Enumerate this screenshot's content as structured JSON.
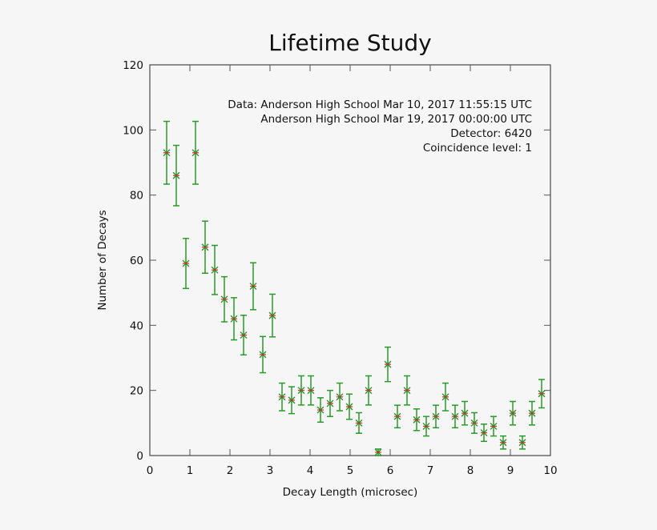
{
  "chart_data": {
    "type": "scatter",
    "title": "Lifetime Study",
    "xlabel": "Decay Length (microsec)",
    "ylabel": "Number of Decays",
    "xlim": [
      0,
      10
    ],
    "ylim": [
      0,
      120
    ],
    "xticks": [
      0,
      1,
      2,
      3,
      4,
      5,
      6,
      7,
      8,
      9,
      10
    ],
    "yticks": [
      0,
      20,
      40,
      60,
      80,
      100,
      120
    ],
    "grid": false,
    "error_bars": "sqrt(N)",
    "colors": {
      "marker": "#2a8a2a",
      "errorbar": "#2a9a2a",
      "marker_center": "#d03020"
    },
    "annotations": [
      "Data: Anderson High School Mar 10, 2017 11:55:15 UTC",
      "Anderson High School Mar 19, 2017 00:00:00 UTC",
      "Detector: 6420",
      "Coincidence level: 1"
    ],
    "x": [
      0.42,
      0.66,
      0.9,
      1.14,
      1.38,
      1.62,
      1.86,
      2.1,
      2.34,
      2.58,
      2.82,
      3.06,
      3.3,
      3.54,
      3.78,
      4.02,
      4.26,
      4.5,
      4.74,
      4.98,
      5.22,
      5.46,
      5.7,
      5.94,
      6.18,
      6.42,
      6.66,
      6.9,
      7.14,
      7.38,
      7.62,
      7.86,
      8.1,
      8.34,
      8.58,
      8.82,
      9.06,
      9.3,
      9.54,
      9.78
    ],
    "y": [
      93,
      86,
      59,
      93,
      64,
      57,
      48,
      42,
      37,
      52,
      31,
      43,
      18,
      17,
      20,
      20,
      14,
      16,
      18,
      15,
      10,
      20,
      1,
      28,
      12,
      20,
      11,
      9,
      12,
      18,
      12,
      13,
      10,
      7,
      9,
      4,
      13,
      4,
      13,
      19
    ]
  }
}
